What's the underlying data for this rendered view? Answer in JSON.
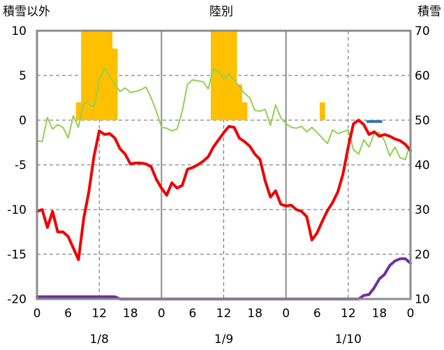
{
  "chart_data": {
    "type": "line",
    "title": "陸別",
    "left_axis_label": "積雪以外",
    "right_axis_label": "積雪",
    "y_left": {
      "min": -20,
      "max": 10,
      "ticks": [
        10,
        5,
        0,
        -5,
        -10,
        -15,
        -20
      ]
    },
    "y_right": {
      "min": 10,
      "max": 70,
      "ticks": [
        70,
        60,
        50,
        40,
        30,
        20,
        10
      ]
    },
    "x": {
      "min": 0,
      "max": 72,
      "tick_hours": [
        0,
        6,
        12,
        18,
        24,
        30,
        36,
        42,
        48,
        54,
        60,
        66,
        72
      ],
      "tick_labels": [
        "0",
        "6",
        "12",
        "18",
        "0",
        "6",
        "12",
        "18",
        "0",
        "6",
        "12",
        "18",
        "0"
      ]
    },
    "dates": [
      {
        "label": "1/8",
        "hour": 12
      },
      {
        "label": "1/9",
        "hour": 36
      },
      {
        "label": "1/10",
        "hour": 60
      }
    ],
    "grid": true,
    "series": [
      {
        "key": "snow_bar",
        "axis": "left",
        "kind": "bar",
        "color": "#ffc000",
        "values": [
          [
            8,
            2
          ],
          [
            9,
            10
          ],
          [
            10,
            10
          ],
          [
            11,
            10
          ],
          [
            12,
            10
          ],
          [
            13,
            10
          ],
          [
            14,
            10
          ],
          [
            15,
            8
          ],
          [
            34,
            10
          ],
          [
            35,
            10
          ],
          [
            36,
            10
          ],
          [
            37,
            10
          ],
          [
            38,
            10
          ],
          [
            39,
            4
          ],
          [
            40,
            2
          ],
          [
            55,
            2
          ]
        ]
      },
      {
        "key": "blue_bar",
        "axis": "left",
        "kind": "bar",
        "color": "#2e75b6",
        "values": [
          [
            64,
            -0.3
          ],
          [
            65,
            -0.3
          ],
          [
            66,
            -0.3
          ]
        ]
      },
      {
        "key": "green_line",
        "axis": "left",
        "kind": "line",
        "color": "#92d050",
        "values": [
          [
            0,
            -2.3
          ],
          [
            1,
            -2.4
          ],
          [
            2,
            0.3
          ],
          [
            3,
            -1
          ],
          [
            4,
            -0.5
          ],
          [
            5,
            -0.8
          ],
          [
            6,
            -2
          ],
          [
            7,
            0.5
          ],
          [
            8,
            -0.8
          ],
          [
            9,
            2
          ],
          [
            10,
            1.8
          ],
          [
            11,
            1.5
          ],
          [
            12,
            4.5
          ],
          [
            13,
            5.8
          ],
          [
            14,
            5
          ],
          [
            15,
            4
          ],
          [
            16,
            3.2
          ],
          [
            17,
            3.6
          ],
          [
            18,
            3.1
          ],
          [
            19,
            3.2
          ],
          [
            20,
            3.4
          ],
          [
            21,
            3.7
          ],
          [
            22,
            2.5
          ],
          [
            23,
            1
          ],
          [
            24,
            -0.8
          ],
          [
            25,
            -0.9
          ],
          [
            26,
            -1.2
          ],
          [
            27,
            -1
          ],
          [
            28,
            1
          ],
          [
            29,
            4
          ],
          [
            30,
            4.5
          ],
          [
            31,
            4.4
          ],
          [
            32,
            4.3
          ],
          [
            33,
            3.5
          ],
          [
            34,
            5.7
          ],
          [
            35,
            5.5
          ],
          [
            36,
            4.6
          ],
          [
            37,
            5.2
          ],
          [
            38,
            4.5
          ],
          [
            39,
            3.8
          ],
          [
            40,
            3
          ],
          [
            41,
            2.5
          ],
          [
            42,
            1.1
          ],
          [
            43,
            1
          ],
          [
            44,
            1.2
          ],
          [
            45,
            -0.6
          ],
          [
            46,
            1.7
          ],
          [
            47,
            0.3
          ],
          [
            48,
            -0.4
          ],
          [
            49,
            -0.8
          ],
          [
            50,
            -0.9
          ],
          [
            51,
            -0.7
          ],
          [
            52,
            -1.3
          ],
          [
            53,
            -0.8
          ],
          [
            54,
            -1.4
          ],
          [
            55,
            -2
          ],
          [
            56,
            -2.6
          ],
          [
            57,
            -1.1
          ],
          [
            58,
            -1.5
          ],
          [
            59,
            -1.3
          ],
          [
            60,
            -1.1
          ],
          [
            61,
            -3.3
          ],
          [
            62,
            -3.8
          ],
          [
            63,
            -2.2
          ],
          [
            64,
            -3
          ],
          [
            65,
            -1.5
          ],
          [
            66,
            -1.4
          ],
          [
            67,
            -2.3
          ],
          [
            68,
            -4
          ],
          [
            69,
            -3
          ],
          [
            70,
            -4.2
          ],
          [
            71,
            -4.4
          ],
          [
            72,
            -2.6
          ]
        ]
      },
      {
        "key": "red_line",
        "axis": "left",
        "kind": "line",
        "color": "#ee0000",
        "values": [
          [
            0,
            -10.2
          ],
          [
            1,
            -10
          ],
          [
            2,
            -12
          ],
          [
            3,
            -10.2
          ],
          [
            4,
            -12.5
          ],
          [
            5,
            -12.5
          ],
          [
            6,
            -13
          ],
          [
            7,
            -14.3
          ],
          [
            8,
            -15.6
          ],
          [
            9,
            -11
          ],
          [
            10,
            -8
          ],
          [
            11,
            -4
          ],
          [
            12,
            -1.2
          ],
          [
            13,
            -1.6
          ],
          [
            14,
            -1.5
          ],
          [
            15,
            -2
          ],
          [
            16,
            -3.2
          ],
          [
            17,
            -3.8
          ],
          [
            18,
            -4.9
          ],
          [
            19,
            -4.8
          ],
          [
            20,
            -4.8
          ],
          [
            21,
            -4.9
          ],
          [
            22,
            -5.2
          ],
          [
            23,
            -6.6
          ],
          [
            24,
            -7.6
          ],
          [
            25,
            -8.4
          ],
          [
            26,
            -7
          ],
          [
            27,
            -7.6
          ],
          [
            28,
            -7.3
          ],
          [
            29,
            -5.5
          ],
          [
            30,
            -5.3
          ],
          [
            31,
            -5
          ],
          [
            32,
            -4.6
          ],
          [
            33,
            -4.1
          ],
          [
            34,
            -3
          ],
          [
            35,
            -2.2
          ],
          [
            36,
            -1.4
          ],
          [
            37,
            -0.7
          ],
          [
            38,
            -0.8
          ],
          [
            39,
            -2
          ],
          [
            40,
            -2.4
          ],
          [
            41,
            -2.9
          ],
          [
            42,
            -3.8
          ],
          [
            43,
            -4.4
          ],
          [
            44,
            -6.8
          ],
          [
            45,
            -8.6
          ],
          [
            46,
            -7.9
          ],
          [
            47,
            -9.4
          ],
          [
            48,
            -9.6
          ],
          [
            49,
            -9.5
          ],
          [
            50,
            -10
          ],
          [
            51,
            -10.2
          ],
          [
            52,
            -10.8
          ],
          [
            53,
            -13.4
          ],
          [
            54,
            -12.6
          ],
          [
            55,
            -11.3
          ],
          [
            56,
            -10.1
          ],
          [
            57,
            -9.2
          ],
          [
            58,
            -8
          ],
          [
            59,
            -6
          ],
          [
            60,
            -3
          ],
          [
            61,
            -0.4
          ],
          [
            62,
            0
          ],
          [
            63,
            -0.5
          ],
          [
            64,
            -1.6
          ],
          [
            65,
            -1.3
          ],
          [
            66,
            -1.8
          ],
          [
            67,
            -1.6
          ],
          [
            68,
            -1.8
          ],
          [
            69,
            -2.1
          ],
          [
            70,
            -2.3
          ],
          [
            71,
            -2.7
          ],
          [
            72,
            -3.4
          ]
        ]
      },
      {
        "key": "purple_line",
        "axis": "right",
        "kind": "line",
        "color": "#7030a0",
        "values": [
          [
            0,
            10.5
          ],
          [
            15,
            10.5
          ],
          [
            16,
            10
          ],
          [
            61,
            10
          ],
          [
            62,
            10
          ],
          [
            63,
            10.8
          ],
          [
            64,
            11
          ],
          [
            65,
            12.5
          ],
          [
            66,
            14.5
          ],
          [
            67,
            15.5
          ],
          [
            68,
            17.5
          ],
          [
            69,
            18.5
          ],
          [
            70,
            19
          ],
          [
            71,
            19
          ],
          [
            72,
            18
          ]
        ]
      }
    ]
  }
}
